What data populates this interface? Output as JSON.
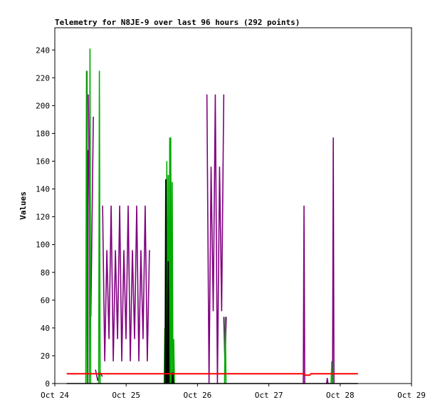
{
  "chart_data": {
    "type": "line",
    "title": "Telemetry for N8JE-9 over last 96 hours (292 points)",
    "xlabel": "",
    "ylabel": "Values",
    "xlim": [
      "Oct 24 00:00",
      "Oct 29 00:00"
    ],
    "ylim": [
      0,
      256
    ],
    "x_ticks": [
      "Oct 24",
      "Oct 25",
      "Oct 26",
      "Oct 27",
      "Oct 28",
      "Oct 29"
    ],
    "y_ticks": [
      0,
      20,
      40,
      60,
      80,
      100,
      120,
      140,
      160,
      180,
      200,
      220,
      240
    ],
    "grid": false,
    "legend": "none",
    "series": [
      {
        "color": "#800080",
        "style": "oscillating-bands",
        "bands": [
          {
            "start": "Oct 24 10:48",
            "end": "Oct 24 11:16",
            "lows": [
              0,
              56,
              0,
              110
            ],
            "highs": [
              225,
              168,
              225,
              110
            ]
          },
          {
            "start": "Oct 24 11:16",
            "end": "Oct 24 12:58",
            "lows": [
              48,
              64,
              0
            ],
            "highs": [
              208,
              192,
              145,
              128
            ]
          },
          {
            "start": "Oct 24 13:40",
            "end": "Oct 24 16:00",
            "lows": [
              2,
              5
            ],
            "highs": [
              10,
              8
            ]
          },
          {
            "start": "Oct 24 16:05",
            "end": "Oct 25 07:50",
            "lows": [
              16,
              32
            ],
            "highs": [
              128,
              96
            ]
          },
          {
            "start": "Oct 26 03:10",
            "end": "Oct 26 08:50",
            "lows": [
              0,
              52
            ],
            "highs": [
              208,
              156
            ]
          },
          {
            "start": "Oct 26 08:50",
            "end": "Oct 26 09:40",
            "lows": [
              13
            ],
            "highs": [
              48
            ]
          }
        ],
        "spikes": [
          {
            "x": "Oct 27 11:50",
            "y": 128
          },
          {
            "x": "Oct 27 19:40",
            "y": 4
          },
          {
            "x": "Oct 27 21:40",
            "y": 177
          }
        ]
      },
      {
        "color": "#00aa00",
        "style": "spikes",
        "points": [
          {
            "x": "Oct 24 10:40",
            "y": 225
          },
          {
            "x": "Oct 24 11:50",
            "y": 241
          },
          {
            "x": "Oct 24 15:00",
            "y": 225
          },
          {
            "x": "Oct 25 13:00",
            "y": 40
          },
          {
            "x": "Oct 25 13:40",
            "y": 160
          },
          {
            "x": "Oct 25 13:55",
            "y": 120
          },
          {
            "x": "Oct 25 14:10",
            "y": 150
          },
          {
            "x": "Oct 25 14:40",
            "y": 177
          },
          {
            "x": "Oct 25 15:00",
            "y": 177
          },
          {
            "x": "Oct 25 15:30",
            "y": 145
          },
          {
            "x": "Oct 25 16:00",
            "y": 32
          },
          {
            "x": "Oct 26 09:20",
            "y": 48
          },
          {
            "x": "Oct 27 21:10",
            "y": 16
          }
        ]
      },
      {
        "color": "#000000",
        "style": "baseline-with-spikes",
        "baseline": 0,
        "range": [
          "Oct 24 04:00",
          "Oct 28 06:00"
        ],
        "spikes": [
          {
            "x": "Oct 25 13:20",
            "y": 147
          },
          {
            "x": "Oct 25 14:10",
            "y": 88
          },
          {
            "x": "Oct 25 15:40",
            "y": 8
          }
        ]
      },
      {
        "color": "#ff0000",
        "style": "line",
        "points": [
          {
            "x": "Oct 24 04:00",
            "y": 7
          },
          {
            "x": "Oct 27 11:50",
            "y": 7
          },
          {
            "x": "Oct 27 12:10",
            "y": 6
          },
          {
            "x": "Oct 27 13:40",
            "y": 6
          },
          {
            "x": "Oct 27 14:10",
            "y": 7
          },
          {
            "x": "Oct 28 06:00",
            "y": 7
          }
        ]
      }
    ]
  }
}
